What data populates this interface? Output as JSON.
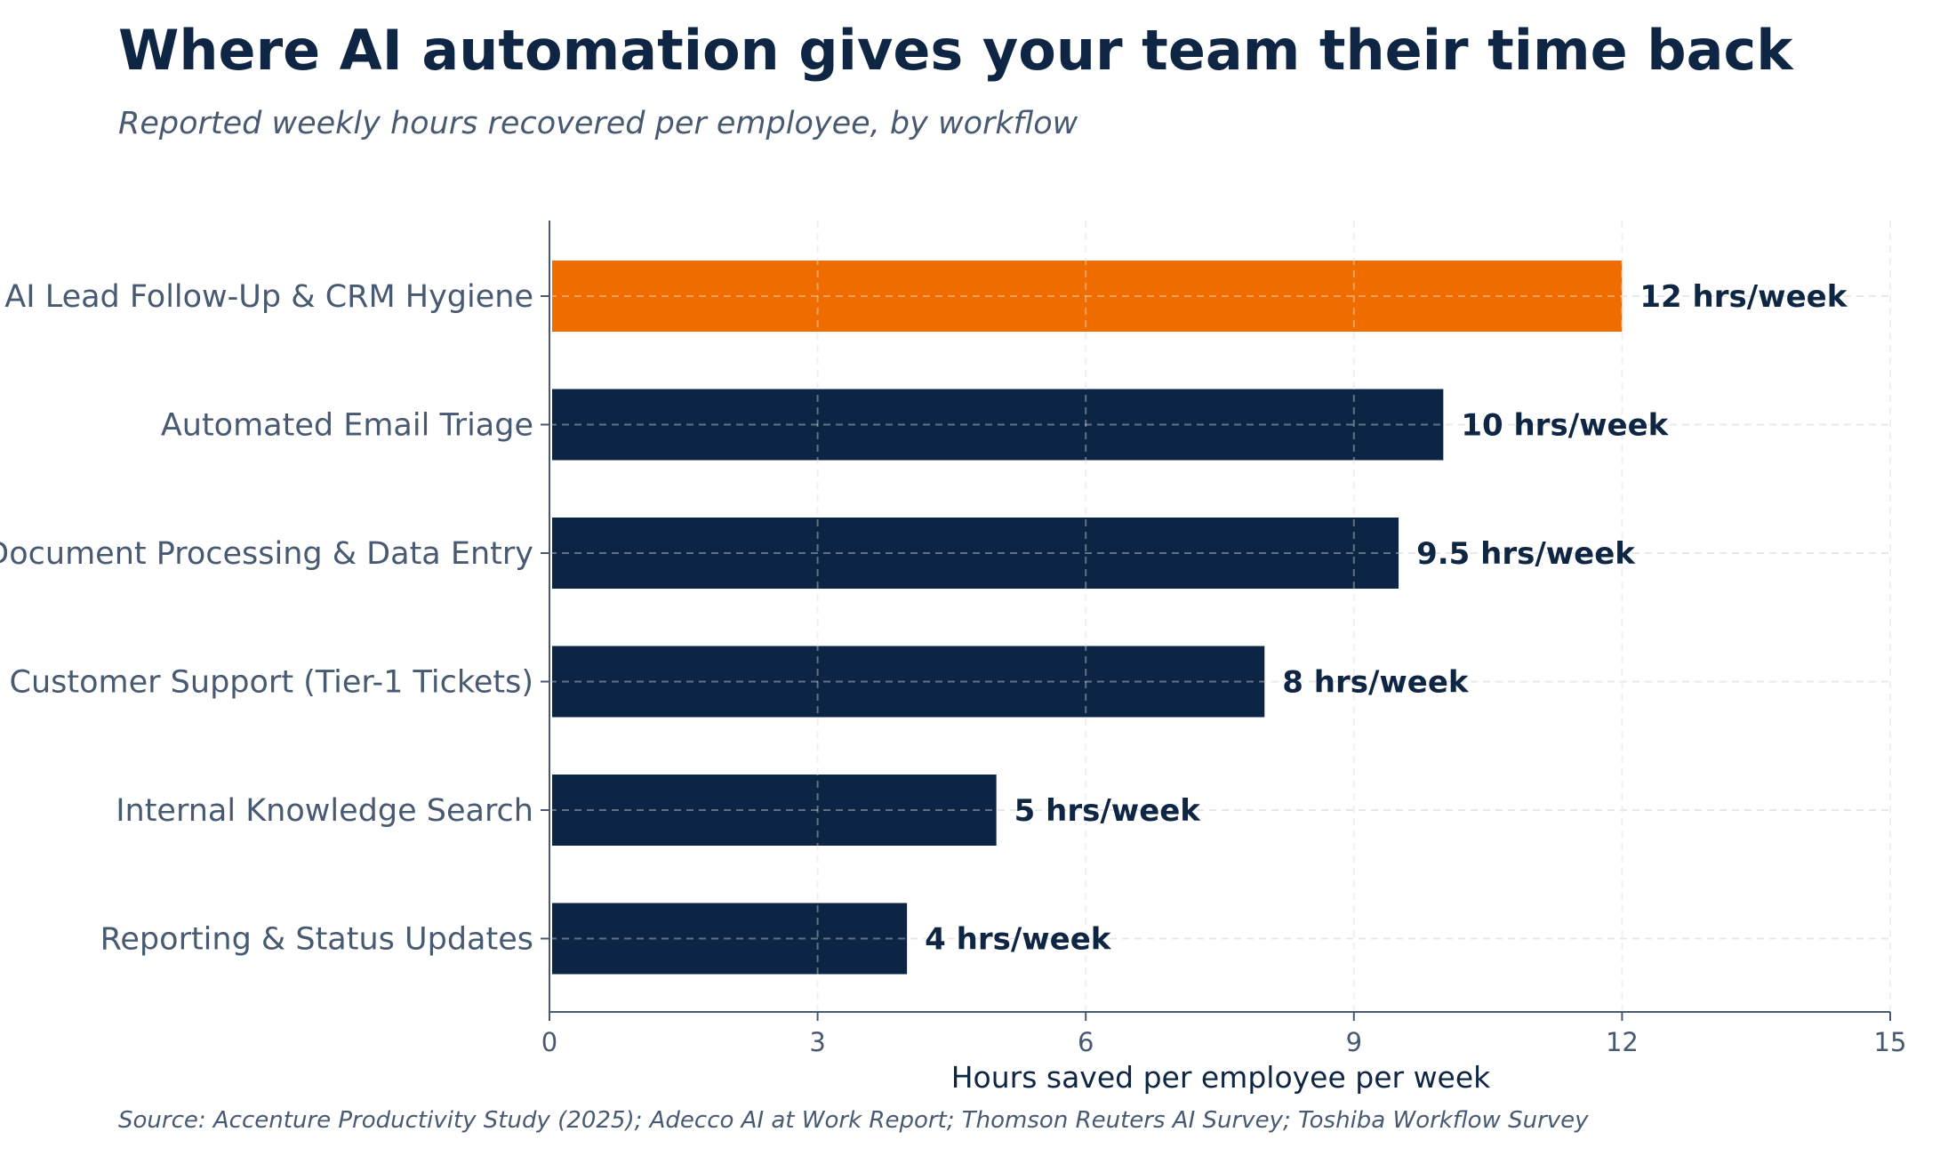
{
  "chart_data": {
    "type": "bar",
    "orientation": "horizontal",
    "title": "Where AI automation gives your team their time back",
    "subtitle": "Reported weekly hours recovered per employee, by workflow",
    "xlabel": "Hours saved per employee per week",
    "ylabel": "",
    "xlim": [
      0,
      15
    ],
    "xticks": [
      0,
      3,
      6,
      9,
      12,
      15
    ],
    "xtick_labels": [
      "0",
      "3",
      "6",
      "9",
      "12",
      "15"
    ],
    "grid": true,
    "legend": "none",
    "categories": [
      "AI Lead Follow-Up & CRM Hygiene",
      "Automated Email Triage",
      "Document Processing & Data Entry",
      "Customer Support (Tier-1 Tickets)",
      "Internal Knowledge Search",
      "Reporting & Status Updates"
    ],
    "values": [
      12,
      10,
      9.5,
      8,
      5,
      4
    ],
    "value_labels": [
      "12 hrs/week",
      "10 hrs/week",
      "9.5 hrs/week",
      "8 hrs/week",
      "5 hrs/week",
      "4 hrs/week"
    ],
    "bar_colors": [
      "#ef6c00",
      "#0d2544",
      "#0d2544",
      "#0d2544",
      "#0d2544",
      "#0d2544"
    ],
    "source": "Source: Accenture Productivity Study (2025); Adecco AI at Work Report; Thomson Reuters AI Survey; Toshiba Workflow Survey"
  },
  "colors": {
    "highlight": "#ef6c00",
    "primary": "#0d2544",
    "text_muted": "#485a72",
    "axis": "#485a72",
    "grid": "#e8e8e8"
  }
}
